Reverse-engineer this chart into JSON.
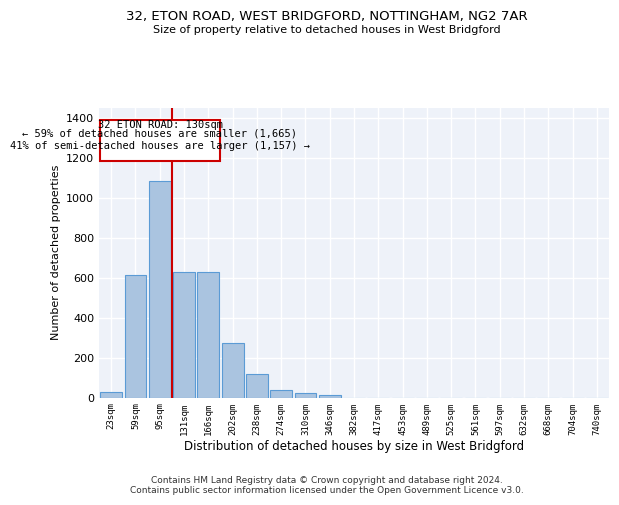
{
  "title": "32, ETON ROAD, WEST BRIDGFORD, NOTTINGHAM, NG2 7AR",
  "subtitle": "Size of property relative to detached houses in West Bridgford",
  "xlabel": "Distribution of detached houses by size in West Bridgford",
  "ylabel": "Number of detached properties",
  "footer_line1": "Contains HM Land Registry data © Crown copyright and database right 2024.",
  "footer_line2": "Contains public sector information licensed under the Open Government Licence v3.0.",
  "bar_labels": [
    "23sqm",
    "59sqm",
    "95sqm",
    "131sqm",
    "166sqm",
    "202sqm",
    "238sqm",
    "274sqm",
    "310sqm",
    "346sqm",
    "382sqm",
    "417sqm",
    "453sqm",
    "489sqm",
    "525sqm",
    "561sqm",
    "597sqm",
    "632sqm",
    "668sqm",
    "704sqm",
    "740sqm"
  ],
  "bar_values": [
    30,
    615,
    1085,
    630,
    630,
    275,
    120,
    40,
    22,
    12,
    0,
    0,
    0,
    0,
    0,
    0,
    0,
    0,
    0,
    0,
    0
  ],
  "bar_color": "#aac4e0",
  "bar_edgecolor": "#5b9bd5",
  "bg_color": "#eef2f9",
  "grid_color": "#ffffff",
  "marker_label_line1": "32 ETON ROAD: 130sqm",
  "marker_label_line2": "← 59% of detached houses are smaller (1,665)",
  "marker_label_line3": "41% of semi-detached houses are larger (1,157) →",
  "annotation_box_color": "#cc0000",
  "ylim": [
    0,
    1450
  ],
  "yticks": [
    0,
    200,
    400,
    600,
    800,
    1000,
    1200,
    1400
  ]
}
